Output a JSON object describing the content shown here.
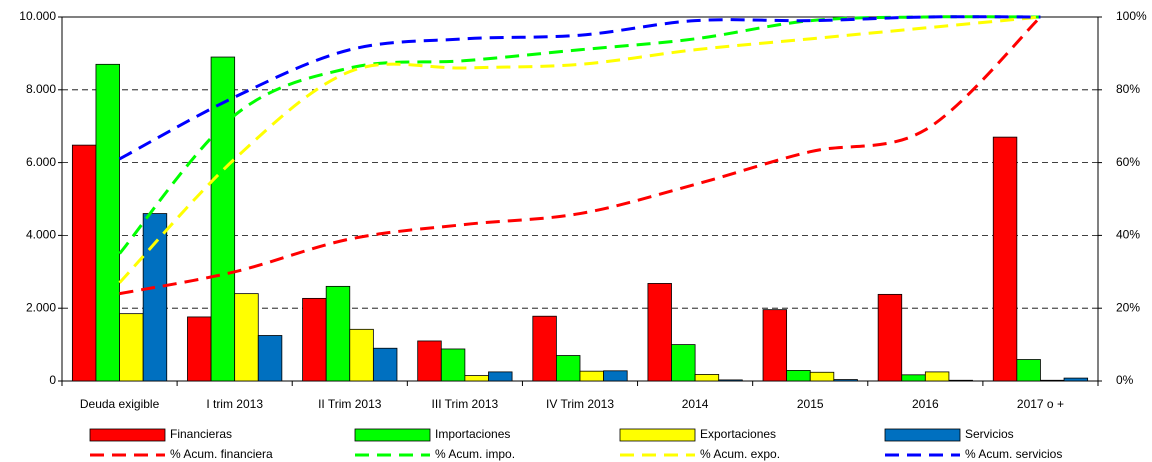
{
  "chart_data": {
    "type": "bar-line",
    "categories": [
      "Deuda exigible",
      "I trim 2013",
      "II Trim 2013",
      "III Trim 2013",
      "IV Trim 2013",
      "2014",
      "2015",
      "2016",
      "2017 o +"
    ],
    "series": [
      {
        "name": "Financieras",
        "color": "#ff0000",
        "type": "bar",
        "values": [
          6480,
          1760,
          2270,
          1100,
          1780,
          2680,
          1960,
          2380,
          6700
        ]
      },
      {
        "name": "Importaciones",
        "color": "#00ff00",
        "type": "bar",
        "values": [
          8700,
          8900,
          2600,
          880,
          700,
          1000,
          290,
          170,
          590
        ]
      },
      {
        "name": "Exportaciones",
        "color": "#ffff00",
        "type": "bar",
        "values": [
          1850,
          2400,
          1420,
          150,
          270,
          180,
          240,
          250,
          20
        ]
      },
      {
        "name": "Servicios",
        "color": "#0070c0",
        "type": "bar",
        "values": [
          4600,
          1250,
          900,
          250,
          280,
          30,
          40,
          20,
          80
        ]
      },
      {
        "name": "% Acum. financiera",
        "color": "#ff0000",
        "type": "line",
        "axis": "y2",
        "values": [
          24,
          30,
          39,
          43,
          46,
          54,
          63,
          69,
          100
        ]
      },
      {
        "name": "% Acum. impo.",
        "color": "#00ff00",
        "type": "line",
        "axis": "y2",
        "values": [
          35,
          73,
          86,
          88,
          91,
          94,
          99,
          100,
          100
        ]
      },
      {
        "name": "% Acum. expo.",
        "color": "#ffff00",
        "type": "line",
        "axis": "y2",
        "values": [
          27,
          61,
          85,
          86,
          87,
          91,
          94,
          97,
          100
        ]
      },
      {
        "name": "% Acum. servicios",
        "color": "#0000ff",
        "type": "line",
        "axis": "y2",
        "values": [
          61,
          78,
          91,
          94,
          95,
          99,
          99,
          100,
          100
        ]
      }
    ],
    "ylim": [
      0,
      10000
    ],
    "yticks": [
      0,
      {
        "value": 2000,
        "label": "2.000"
      },
      {
        "value": 4000,
        "label": "4.000"
      },
      {
        "value": 6000,
        "label": "6.000"
      },
      {
        "value": 8000,
        "label": "8.000"
      },
      {
        "value": 10000,
        "label": "10.000"
      }
    ],
    "y2lim": [
      0,
      100
    ],
    "y2ticks": [
      {
        "value": 0,
        "label": "0%"
      },
      {
        "value": 20,
        "label": "20%"
      },
      {
        "value": 40,
        "label": "40%"
      },
      {
        "value": 60,
        "label": "60%"
      },
      {
        "value": 80,
        "label": "80%"
      },
      {
        "value": 100,
        "label": "100%"
      }
    ],
    "grid": true,
    "legend": "bottom"
  }
}
